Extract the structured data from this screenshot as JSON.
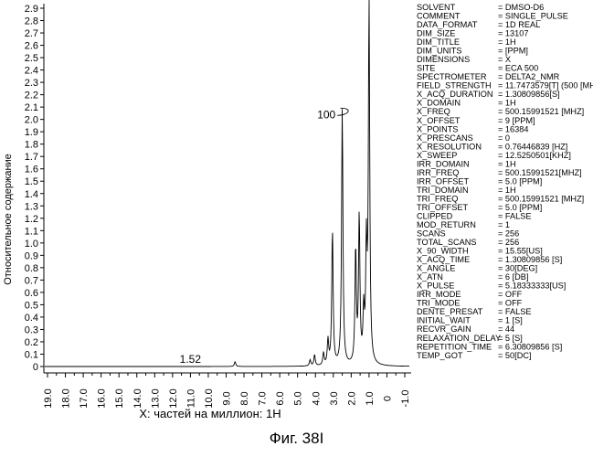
{
  "chart_data": {
    "type": "line",
    "xlabel": "X: частей на миллион: 1H",
    "ylabel": "Относительное содержание",
    "xlim": [
      19.0,
      -1.0
    ],
    "ylim": [
      -0.05,
      2.97
    ],
    "x_reversed": true,
    "grid": false,
    "x_ticks": [
      "19.0",
      "18.0",
      "17.0",
      "16.0",
      "15.0",
      "14.0",
      "13.0",
      "12.0",
      "11.0",
      "10.0",
      "9.0",
      "8.0",
      "7.0",
      "6.0",
      "5.0",
      "4.0",
      "3.0",
      "2.0",
      "1.0",
      "0",
      "-1.0"
    ],
    "y_ticks": [
      "0",
      "0.1",
      "0.2",
      "0.3",
      "0.4",
      "0.5",
      "0.6",
      "0.7",
      "0.8",
      "0.9",
      "1.0",
      "1.1",
      "1.2",
      "1.3",
      "1.4",
      "1.5",
      "1.6",
      "1.7",
      "1.8",
      "1.9",
      "2.0",
      "2.1",
      "2.2",
      "2.3",
      "2.4",
      "2.5",
      "2.6",
      "2.7",
      "2.8",
      "2.9"
    ],
    "peaks": [
      {
        "ppm": 8.5,
        "height": 0.04
      },
      {
        "ppm": 4.3,
        "height": 0.05
      },
      {
        "ppm": 4.05,
        "height": 0.09
      },
      {
        "ppm": 3.55,
        "height": 0.1
      },
      {
        "ppm": 3.3,
        "height": 0.2
      },
      {
        "ppm": 3.05,
        "height": 1.1
      },
      {
        "ppm": 2.5,
        "height": 2.08
      },
      {
        "ppm": 1.75,
        "height": 0.93
      },
      {
        "ppm": 1.55,
        "height": 1.19
      },
      {
        "ppm": 1.3,
        "height": 0.4
      },
      {
        "ppm": 1.15,
        "height": 0.9
      },
      {
        "ppm": 1.0,
        "height": 2.92
      }
    ],
    "annotations": [
      {
        "text": "1.52",
        "ppm": 11.6,
        "y": 0.03
      },
      {
        "text": "100",
        "ppm": 3.9,
        "y": 2.01
      }
    ]
  },
  "metadata": [
    {
      "key": "SOLVENT",
      "value": "= DMSO-D6"
    },
    {
      "key": "COMMENT",
      "value": "= SINGLE_PULSE"
    },
    {
      "key": "DATA_FORMAT",
      "value": "= 1D REAL"
    },
    {
      "key": "DIM_SIZE",
      "value": "= 13107"
    },
    {
      "key": "DIM_TITLE",
      "value": "= 1H"
    },
    {
      "key": "DIM_UNITS",
      "value": "= [PPM]"
    },
    {
      "key": "DIMENSIONS",
      "value": "= X"
    },
    {
      "key": "SITE",
      "value": "= ECA 500"
    },
    {
      "key": "SPECTROMETER",
      "value": "= DELTA2_NMR"
    },
    {
      "key": "FIELD_STRENGTH",
      "value": "= 11.7473579[T] (500 [MH]"
    },
    {
      "key": "X_ACQ_DURATION",
      "value": "= 1.30809856[S]"
    },
    {
      "key": "X_DOMAIN",
      "value": "= 1H"
    },
    {
      "key": "X_FREQ",
      "value": "= 500.15991521 [MHZ]"
    },
    {
      "key": "X_OFFSET",
      "value": "= 9 [PPM]"
    },
    {
      "key": "X_POINTS",
      "value": "= 16384"
    },
    {
      "key": "X_PRESCANS",
      "value": "= 0"
    },
    {
      "key": "X_RESOLUTION",
      "value": "= 0.76446839 [HZ]"
    },
    {
      "key": "X_SWEEP",
      "value": "= 12.5250501[KHZ]"
    },
    {
      "key": "IRR_DOMAIN",
      "value": "= 1H"
    },
    {
      "key": "IRR_FREQ",
      "value": "= 500.15991521[MHZ]"
    },
    {
      "key": "IRR_OFFSET",
      "value": "= 5.0 [PPM]"
    },
    {
      "key": "TRI_DOMAIN",
      "value": "= 1H"
    },
    {
      "key": "TRI_FREQ",
      "value": "= 500.15991521 [MHZ]"
    },
    {
      "key": "TRI_OFFSET",
      "value": "= 5.0 [PPM]"
    },
    {
      "key": "CLIPPED",
      "value": "= FALSE"
    },
    {
      "key": "MOD_RETURN",
      "value": "= 1"
    },
    {
      "key": "SCANS",
      "value": "= 256"
    },
    {
      "key": "TOTAL_SCANS",
      "value": "= 256"
    },
    {
      "key": "X_90_WIDTH",
      "value": "= 15.55[US]"
    },
    {
      "key": "X_ACQ_TIME",
      "value": "= 1.30809856 [S]"
    },
    {
      "key": "X_ANGLE",
      "value": "= 30[DEG]"
    },
    {
      "key": "X_ATN",
      "value": "= 6 [DB]"
    },
    {
      "key": "X_PULSE",
      "value": "= 5.18333333[US]"
    },
    {
      "key": "IRR_MODE",
      "value": "= OFF"
    },
    {
      "key": "TRI_MODE",
      "value": "= OFF"
    },
    {
      "key": "DENTE_PRESAT",
      "value": "= FALSE"
    },
    {
      "key": "INITIAL_WAIT",
      "value": "= 1 [S]"
    },
    {
      "key": "RECVR_GAIN",
      "value": "= 44"
    },
    {
      "key": "RELAXATION_DELAY",
      "value": "= 5 [S]"
    },
    {
      "key": "REPETITION_TIME",
      "value": "= 6.30809856 [S]"
    },
    {
      "key": "TEMP_GOT",
      "value": "= 50[DC]"
    }
  ],
  "caption": "Фиг. 38I"
}
